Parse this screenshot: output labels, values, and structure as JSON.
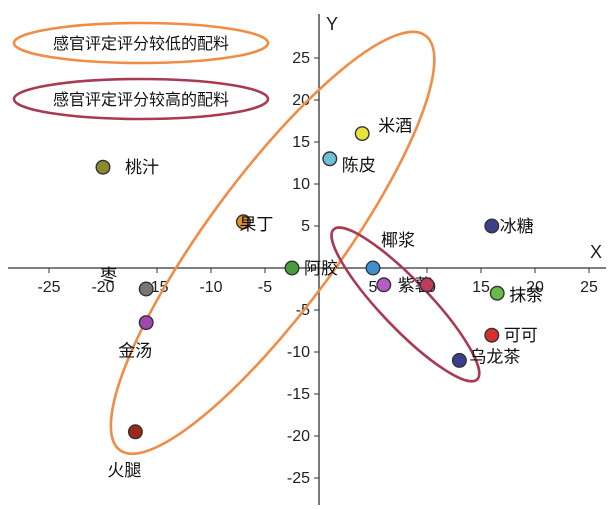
{
  "chart_data": {
    "type": "scatter",
    "xlabel": "X",
    "ylabel": "Y",
    "xlim": [
      -27,
      27
    ],
    "ylim": [
      -28,
      29
    ],
    "x_ticks": [
      -25,
      -20,
      -15,
      -10,
      -5,
      5,
      10,
      15,
      20,
      25
    ],
    "y_ticks": [
      25,
      20,
      15,
      10,
      5,
      -5,
      -10,
      -15,
      -20,
      -25
    ],
    "grid": false,
    "legend": [
      {
        "label": "感官评定评分较低的配料",
        "color": "#f08c46"
      },
      {
        "label": "感官评定评分较高的配料",
        "color": "#a83a52"
      }
    ],
    "points": [
      {
        "label": "桃汁",
        "x": -20,
        "y": 12,
        "color": "#8a8a2a"
      },
      {
        "label": "米酒",
        "x": 4,
        "y": 16,
        "color": "#e8e23a"
      },
      {
        "label": "陈皮",
        "x": 1,
        "y": 13,
        "color": "#6cc0d8"
      },
      {
        "label": "果丁",
        "x": -7,
        "y": 5.5,
        "color": "#e0942e"
      },
      {
        "label": "阿胶",
        "x": -2.5,
        "y": 0,
        "color": "#4a9a3e"
      },
      {
        "label": "椰浆",
        "x": 5,
        "y": 0,
        "color": "#3e8fd0"
      },
      {
        "label": "紫薯",
        "x": 6,
        "y": -2,
        "color": "#b65cc6"
      },
      {
        "label": "",
        "x": 10,
        "y": -2,
        "color": "#c23a5a"
      },
      {
        "label": "冰糖",
        "x": 16,
        "y": 5,
        "color": "#3e3e8e"
      },
      {
        "label": "抹茶",
        "x": 16.5,
        "y": -3,
        "color": "#66bb44"
      },
      {
        "label": "可可",
        "x": 16,
        "y": -8,
        "color": "#d83030"
      },
      {
        "label": "乌龙茶",
        "x": 13,
        "y": -11,
        "color": "#3e3e8e"
      },
      {
        "label": "枣",
        "x": -16,
        "y": -2.5,
        "color": "#777777"
      },
      {
        "label": "金汤",
        "x": -16,
        "y": -6.5,
        "color": "#a048b0"
      },
      {
        "label": "火腿",
        "x": -17,
        "y": -19.5,
        "color": "#a02818"
      }
    ],
    "groups": [
      {
        "legend_index": 0,
        "color": "#f08c46",
        "members": [
          "米酒",
          "陈皮",
          "果丁",
          "阿胶",
          "火腿"
        ]
      },
      {
        "legend_index": 1,
        "color": "#a83a52",
        "members": [
          "椰浆",
          "紫薯",
          "乌龙茶"
        ]
      }
    ]
  }
}
